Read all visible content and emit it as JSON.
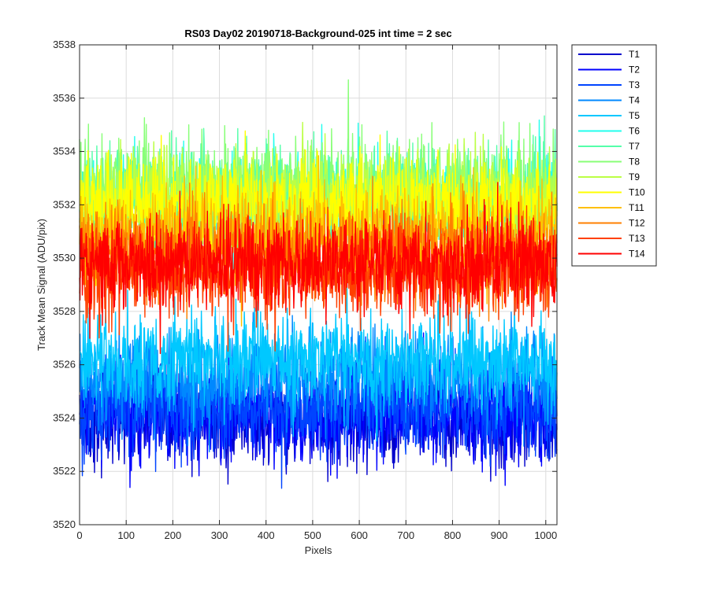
{
  "chart_data": {
    "type": "line",
    "title": "RS03 Day02 20190718-Background-025 int time = 2 sec",
    "xlabel": "Pixels",
    "ylabel": "Track Mean Signal (ADU/pix)",
    "xlim": [
      0,
      1024
    ],
    "ylim": [
      3520,
      3538
    ],
    "xticks": [
      0,
      100,
      200,
      300,
      400,
      500,
      600,
      700,
      800,
      900,
      1000
    ],
    "yticks": [
      3520,
      3522,
      3524,
      3526,
      3528,
      3530,
      3532,
      3534,
      3536,
      3538
    ],
    "grid": true,
    "legend_position": "outside-right-top",
    "points_per_series": 1024,
    "series": [
      {
        "name": "T1",
        "color": "#0000cc",
        "mean": 3524.0,
        "noise_sd": 0.9
      },
      {
        "name": "T2",
        "color": "#0000ff",
        "mean": 3524.2,
        "noise_sd": 0.9
      },
      {
        "name": "T3",
        "color": "#0044ff",
        "mean": 3524.4,
        "noise_sd": 0.9
      },
      {
        "name": "T4",
        "color": "#0088ff",
        "mean": 3525.6,
        "noise_sd": 0.9
      },
      {
        "name": "T5",
        "color": "#00c8ff",
        "mean": 3526.2,
        "noise_sd": 0.9
      },
      {
        "name": "T6",
        "color": "#22ffee",
        "mean": 3532.0,
        "noise_sd": 0.9
      },
      {
        "name": "T7",
        "color": "#55ffaa",
        "mean": 3532.4,
        "noise_sd": 0.9
      },
      {
        "name": "T8",
        "color": "#88ff77",
        "mean": 3532.6,
        "noise_sd": 0.9
      },
      {
        "name": "T9",
        "color": "#bbff44",
        "mean": 3532.2,
        "noise_sd": 0.9
      },
      {
        "name": "T10",
        "color": "#ffff00",
        "mean": 3532.0,
        "noise_sd": 0.9
      },
      {
        "name": "T11",
        "color": "#ffc000",
        "mean": 3530.8,
        "noise_sd": 0.9
      },
      {
        "name": "T12",
        "color": "#ff8000",
        "mean": 3530.2,
        "noise_sd": 0.9
      },
      {
        "name": "T13",
        "color": "#ff4000",
        "mean": 3529.5,
        "noise_sd": 0.9
      },
      {
        "name": "T14",
        "color": "#ff0000",
        "mean": 3529.8,
        "noise_sd": 0.9
      }
    ]
  }
}
